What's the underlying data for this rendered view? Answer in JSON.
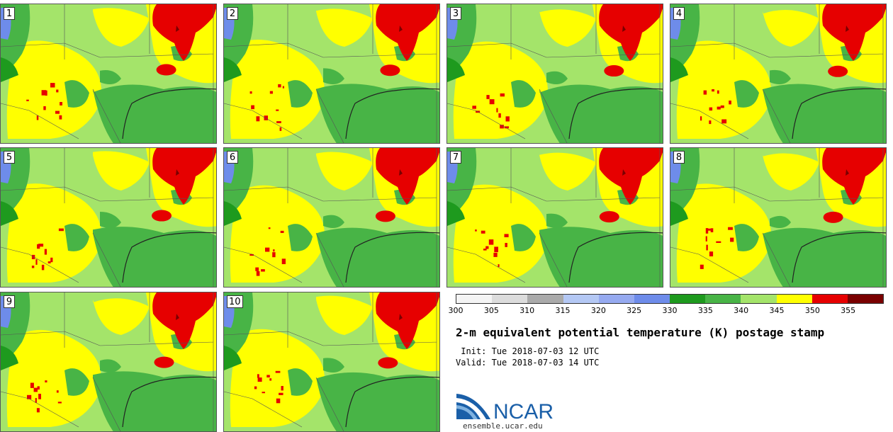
{
  "panels": [
    {
      "label": "1"
    },
    {
      "label": "2"
    },
    {
      "label": "3"
    },
    {
      "label": "4"
    },
    {
      "label": "5"
    },
    {
      "label": "6"
    },
    {
      "label": "7"
    },
    {
      "label": "8"
    },
    {
      "label": "9"
    },
    {
      "label": "10"
    }
  ],
  "colorbar": {
    "ticks": [
      "300",
      "305",
      "310",
      "315",
      "320",
      "325",
      "330",
      "335",
      "340",
      "345",
      "350",
      "355"
    ],
    "colors": [
      "#f4f4f4",
      "#dcdcdc",
      "#aaaaaa",
      "#b4c8f4",
      "#96aaf0",
      "#6e8cea",
      "#1e9a1e",
      "#48b446",
      "#a4e46a",
      "#ffff00",
      "#e60000",
      "#7a0000"
    ]
  },
  "title": "2-m equivalent potential temperature (K) postage stamp",
  "init": " Init: Tue 2018-07-03 12 UTC",
  "valid": "Valid: Tue 2018-07-03 14 UTC",
  "logo_text": "NCAR",
  "url": "ensemble.ucar.edu",
  "map_colors": {
    "light_green": "#a4e46a",
    "green": "#48b446",
    "dark_green": "#1e9a1e",
    "yellow": "#ffff00",
    "red": "#e60000",
    "dark_red": "#7a0000",
    "blue": "#6e8cea"
  }
}
